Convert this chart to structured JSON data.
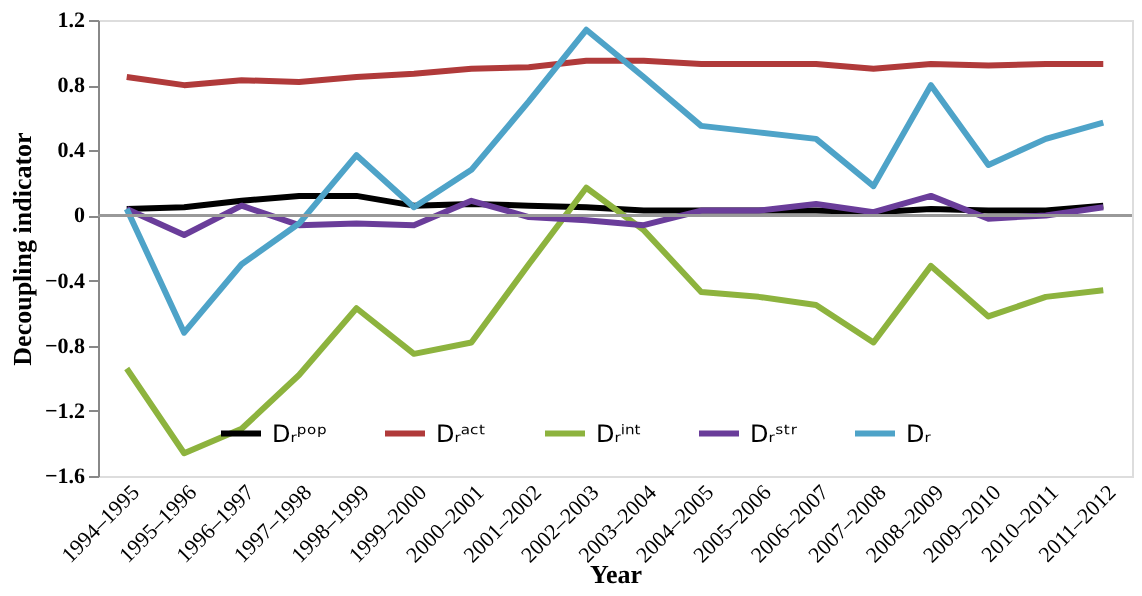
{
  "chart_data": {
    "type": "line",
    "xlabel": "Year",
    "ylabel": "Decoupling  indicator",
    "categories": [
      "1994–1995",
      "1995–1996",
      "1996–1997",
      "1997–1998",
      "1998–1999",
      "1999–2000",
      "2000–2001",
      "2001–2002",
      "2002–2003",
      "2003–2004",
      "2004–2005",
      "2005–2006",
      "2006–2007",
      "2007–2008",
      "2008–2009",
      "2009–2010",
      "2010–2011",
      "2011–2012"
    ],
    "series": [
      {
        "name": "Dᵣᵖᵒᵖ",
        "color": "#000000",
        "values": [
          0.04,
          0.05,
          0.09,
          0.12,
          0.12,
          0.06,
          0.07,
          0.06,
          0.05,
          0.03,
          0.03,
          0.03,
          0.03,
          0.02,
          0.04,
          0.03,
          0.03,
          0.06
        ]
      },
      {
        "name": "Dᵣᵃᶜᵗ",
        "color": "#b03a3a",
        "values": [
          0.85,
          0.8,
          0.83,
          0.82,
          0.85,
          0.87,
          0.9,
          0.91,
          0.95,
          0.95,
          0.93,
          0.93,
          0.93,
          0.9,
          0.93,
          0.92,
          0.93,
          0.93
        ]
      },
      {
        "name": "Dᵣⁱⁿᵗ",
        "color": "#8db33e",
        "values": [
          -0.94,
          -1.46,
          -1.31,
          -0.98,
          -0.57,
          -0.85,
          -0.78,
          -0.3,
          0.17,
          -0.09,
          -0.47,
          -0.5,
          -0.55,
          -0.78,
          -0.31,
          -0.62,
          -0.5,
          -0.46
        ]
      },
      {
        "name": "Dᵣˢᵗʳ",
        "color": "#6a3d9a",
        "values": [
          0.04,
          -0.12,
          0.06,
          -0.06,
          -0.05,
          -0.06,
          0.09,
          -0.01,
          -0.03,
          -0.06,
          0.03,
          0.03,
          0.07,
          0.02,
          0.12,
          -0.02,
          0.0,
          0.05
        ]
      },
      {
        "name": "Dᵣ",
        "color": "#4ea3c8",
        "values": [
          0.04,
          -0.72,
          -0.3,
          -0.05,
          0.37,
          0.05,
          0.28,
          0.7,
          1.14,
          0.85,
          0.55,
          0.51,
          0.47,
          0.18,
          0.8,
          0.31,
          0.47,
          0.57
        ]
      }
    ],
    "ylim": [
      -1.6,
      1.2
    ],
    "yticks": [
      -1.6,
      -1.2,
      -0.8,
      -0.4,
      0,
      0.4,
      0.8,
      1.2
    ],
    "ref_lines": [
      {
        "axis": "y",
        "value": 0,
        "color": "#999999"
      }
    ],
    "grid": false,
    "legend": "bottom",
    "marker": "none",
    "line_style": "solid"
  }
}
